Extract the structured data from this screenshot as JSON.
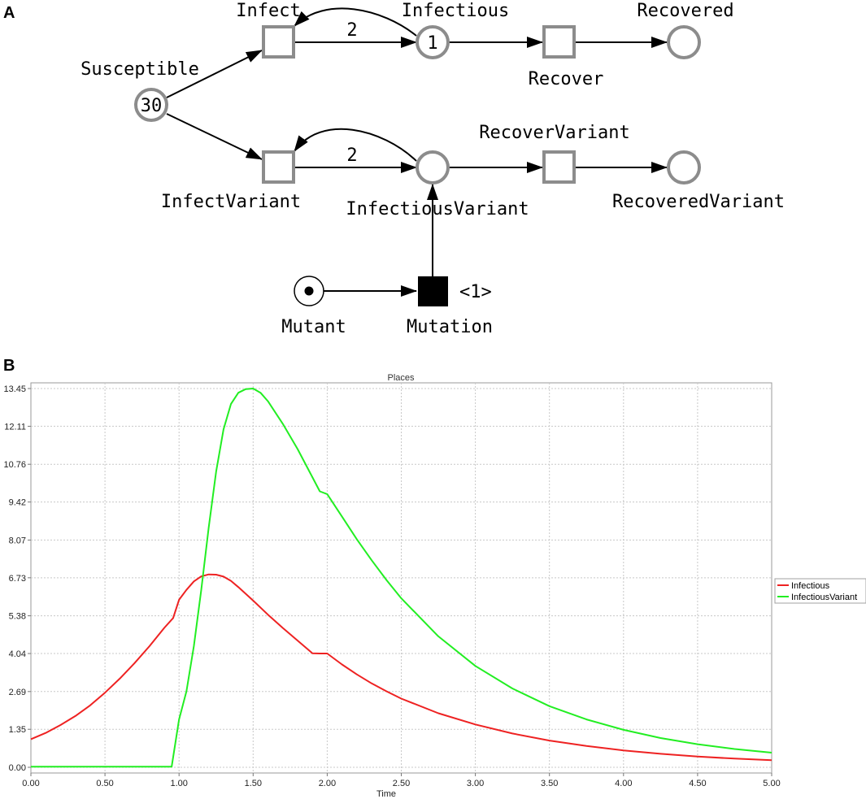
{
  "panel_a": {
    "letter": "A",
    "places": {
      "susceptible": {
        "label": "Susceptible",
        "tokens": "30"
      },
      "infectious": {
        "label": "Infectious",
        "tokens": "1"
      },
      "recovered": {
        "label": "Recovered",
        "tokens": ""
      },
      "infectious_variant": {
        "label": "InfectiousVariant",
        "tokens": ""
      },
      "recovered_variant": {
        "label": "RecoveredVariant",
        "tokens": ""
      },
      "mutant": {
        "label": "Mutant",
        "tokens": "1"
      }
    },
    "transitions": {
      "infect": {
        "label": "Infect"
      },
      "recover": {
        "label": "Recover"
      },
      "infect_variant": {
        "label": "InfectVariant"
      },
      "recover_variant": {
        "label": "RecoverVariant"
      },
      "mutation": {
        "label": "Mutation",
        "delay": "<1>"
      }
    },
    "arc_weights": {
      "infect_to_infectious": "2",
      "infect_variant_to_infectious_variant": "2"
    }
  },
  "panel_b": {
    "letter": "B",
    "chart_data": {
      "type": "line",
      "title": "Places",
      "xlabel": "Time",
      "ylabel": "",
      "xlim": [
        0,
        5
      ],
      "ylim": [
        0,
        13.45
      ],
      "x_ticks": [
        "0.00",
        "0.50",
        "1.00",
        "1.50",
        "2.00",
        "2.50",
        "3.00",
        "3.50",
        "4.00",
        "4.50",
        "5.00"
      ],
      "y_ticks": [
        "0.00",
        "1.35",
        "2.69",
        "4.04",
        "5.38",
        "6.73",
        "8.07",
        "9.42",
        "10.76",
        "12.11",
        "13.45"
      ],
      "grid": true,
      "legend_position": "right",
      "series": [
        {
          "name": "Infectious",
          "color": "#ee2222",
          "x": [
            0,
            0.1,
            0.2,
            0.3,
            0.4,
            0.5,
            0.6,
            0.7,
            0.8,
            0.9,
            0.96,
            1.0,
            1.05,
            1.1,
            1.15,
            1.2,
            1.25,
            1.3,
            1.35,
            1.4,
            1.5,
            1.6,
            1.7,
            1.8,
            1.9,
            1.95,
            2.0,
            2.1,
            2.2,
            2.3,
            2.4,
            2.5,
            2.75,
            3.0,
            3.25,
            3.5,
            3.75,
            4.0,
            4.25,
            4.5,
            4.75,
            5.0
          ],
          "y": [
            1.0,
            1.22,
            1.5,
            1.82,
            2.2,
            2.65,
            3.15,
            3.7,
            4.3,
            4.95,
            5.3,
            5.95,
            6.3,
            6.6,
            6.78,
            6.85,
            6.84,
            6.77,
            6.62,
            6.4,
            5.92,
            5.42,
            4.95,
            4.5,
            4.05,
            4.04,
            4.04,
            3.65,
            3.3,
            2.98,
            2.7,
            2.44,
            1.92,
            1.52,
            1.2,
            0.95,
            0.76,
            0.6,
            0.48,
            0.38,
            0.31,
            0.25
          ]
        },
        {
          "name": "InfectiousVariant",
          "color": "#22ee22",
          "x": [
            0,
            0.5,
            0.95,
            1.0,
            1.05,
            1.1,
            1.15,
            1.2,
            1.25,
            1.3,
            1.35,
            1.4,
            1.45,
            1.5,
            1.55,
            1.6,
            1.7,
            1.8,
            1.9,
            1.95,
            2.0,
            2.1,
            2.2,
            2.3,
            2.4,
            2.5,
            2.75,
            3.0,
            3.25,
            3.5,
            3.75,
            4.0,
            4.25,
            4.5,
            4.75,
            5.0
          ],
          "y": [
            0.02,
            0.02,
            0.02,
            1.7,
            2.7,
            4.3,
            6.3,
            8.5,
            10.5,
            12.0,
            12.9,
            13.3,
            13.43,
            13.45,
            13.3,
            13.0,
            12.2,
            11.3,
            10.3,
            9.8,
            9.7,
            8.9,
            8.1,
            7.35,
            6.65,
            6.0,
            4.65,
            3.6,
            2.8,
            2.17,
            1.7,
            1.33,
            1.04,
            0.82,
            0.65,
            0.52
          ]
        }
      ]
    }
  }
}
